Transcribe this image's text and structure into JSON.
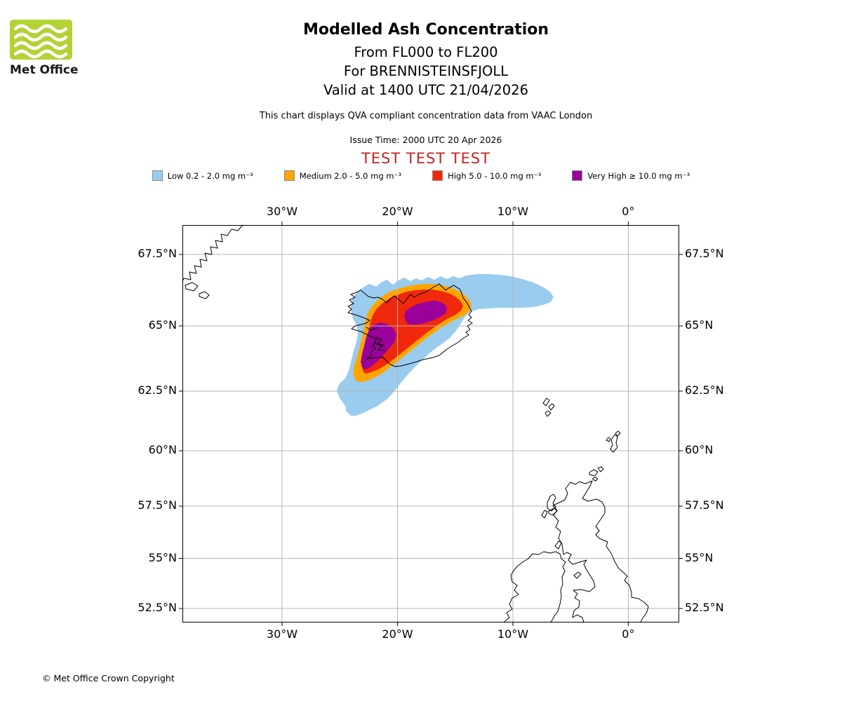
{
  "colors": {
    "low": "#99CCEE",
    "medium": "#FFA500",
    "high": "#F0280C",
    "very_high": "#9B009B",
    "test_text": "#CC2222",
    "logo_green": "#B2D235",
    "grid": "#B5B5B5",
    "coastline": "#000000"
  },
  "header": {
    "logo_text": "Met Office",
    "title": "Modelled Ash Concentration",
    "subtitle1": "From FL000 to FL200",
    "subtitle2": "For BRENNISTEINSFJOLL",
    "subtitle3": "Valid at 1400 UTC 21/04/2026",
    "description": "This chart displays QVA compliant concentration data from VAAC London",
    "issue_time": "Issue Time: 2000 UTC 20 Apr 2026",
    "test_banner": "TEST TEST TEST"
  },
  "legend": {
    "items": [
      {
        "id": "low",
        "label": "Low 0.2 - 2.0 mg m⁻³",
        "color": "#99CCEE"
      },
      {
        "id": "medium",
        "label": "Medium 2.0 - 5.0 mg m⁻³",
        "color": "#FFA500"
      },
      {
        "id": "high",
        "label": "High 5.0 - 10.0 mg m⁻³",
        "color": "#F0280C"
      },
      {
        "id": "very-high",
        "label": "Very High  ≥ 10.0 mg m⁻³",
        "color": "#9B009B"
      }
    ]
  },
  "map": {
    "x_tick_labels": [
      "30°W",
      "20°W",
      "10°W",
      "0°"
    ],
    "y_tick_labels": [
      "67.5°N",
      "65°N",
      "62.5°N",
      "60°N",
      "57.5°N",
      "55°N",
      "52.5°N"
    ]
  },
  "footer": {
    "copyright": "© Met Office Crown Copyright"
  },
  "chart_data": {
    "type": "map",
    "region": "North Atlantic: Iceland, east Greenland coast, Faroes, UK and Ireland",
    "x_ticks_longitude": [
      "30°W",
      "20°W",
      "10°W",
      "0°"
    ],
    "y_ticks_latitude": [
      "67.5°N",
      "65°N",
      "62.5°N",
      "60°N",
      "57.5°N",
      "55°N",
      "52.5°N"
    ],
    "concentration_levels": [
      {
        "level": "Low",
        "range": "0.2 - 2.0 mg m⁻³",
        "color": "#99CCEE"
      },
      {
        "level": "Medium",
        "range": "2.0 - 5.0 mg m⁻³",
        "color": "#FFA500"
      },
      {
        "level": "High",
        "range": "5.0 - 10.0 mg m⁻³",
        "color": "#F0280C"
      },
      {
        "level": "Very High",
        "range": "≥ 10.0 mg m⁻³",
        "color": "#9B009B"
      }
    ],
    "plume_description": "Ash plume centred over Iceland, highest concentrations over west and north-central Iceland, low-concentration tail extending east-northeast to about 7°W near 66°N and southwest to about 62°N"
  }
}
